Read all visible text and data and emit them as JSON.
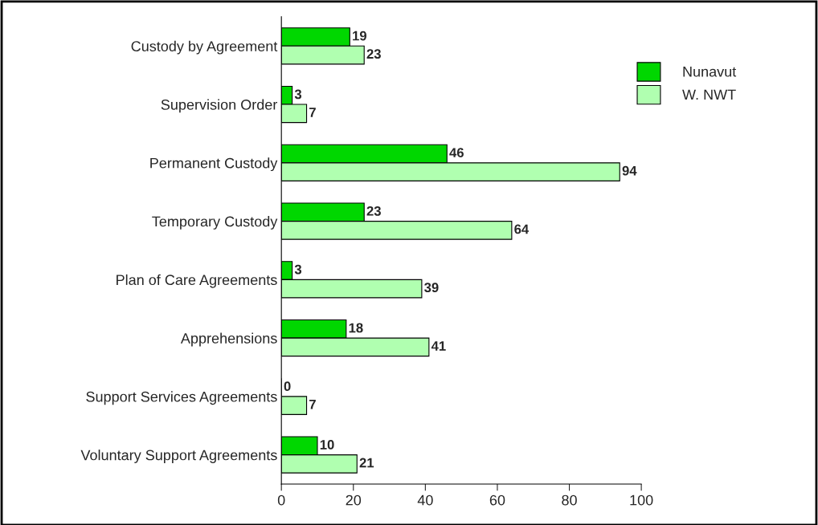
{
  "chart_data": {
    "type": "bar",
    "orientation": "horizontal",
    "categories": [
      "Custody by Agreement",
      "Supervision Order",
      "Permanent Custody",
      "Temporary Custody",
      "Plan of Care Agreements",
      "Apprehensions",
      "Support Services Agreements",
      "Voluntary Support Agreements"
    ],
    "series": [
      {
        "name": "Nunavut",
        "color": "#00d700",
        "values": [
          19,
          3,
          46,
          23,
          3,
          18,
          0,
          10
        ]
      },
      {
        "name": "W. NWT",
        "color": "#b0ffb0",
        "values": [
          23,
          7,
          94,
          64,
          39,
          41,
          7,
          21
        ]
      }
    ],
    "xlim": [
      0,
      100
    ],
    "xticks": [
      0,
      20,
      40,
      60,
      80,
      100
    ],
    "data_labels": true,
    "legend": "top right",
    "grid": false
  }
}
